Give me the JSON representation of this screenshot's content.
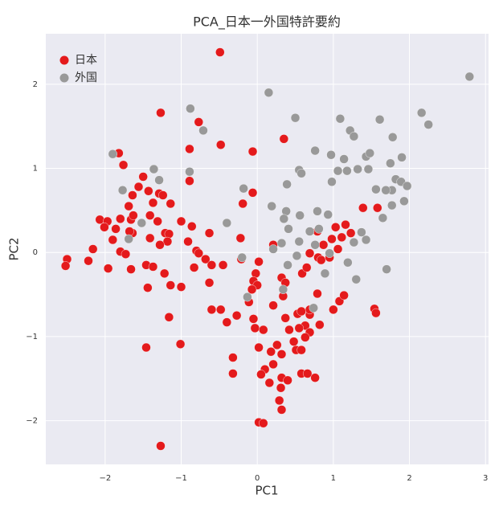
{
  "chart_data": {
    "type": "scatter",
    "title": "PCA_日本一外国特許要約",
    "x_label": "PC1",
    "y_label": "PC2",
    "xlim": [
      -2.78,
      3.04
    ],
    "ylim": [
      -2.52,
      2.6
    ],
    "xticks": [
      {
        "value": -2,
        "label": "−2"
      },
      {
        "value": -1,
        "label": "−1"
      },
      0,
      1,
      2,
      3
    ],
    "yticks": [
      {
        "value": -2,
        "label": "−2"
      },
      {
        "value": -1,
        "label": "−1"
      },
      0,
      1,
      2
    ],
    "grid": true,
    "legend": "upper left",
    "series": [
      {
        "name": "日本",
        "color": "#e41a1c",
        "x": [
          -0.49,
          -1.27,
          -0.77,
          -1.82,
          -1.76,
          -0.89,
          -0.48,
          -0.06,
          0.35,
          -0.89,
          -1.5,
          -1.56,
          -1.43,
          -1.29,
          -1.24,
          -1.64,
          -1.69,
          -1.37,
          -1.14,
          -0.19,
          -0.06,
          -2.07,
          -1.97,
          -2.01,
          -1.86,
          -1.8,
          -1.66,
          -1.63,
          -1.41,
          -1.31,
          -1.0,
          -0.86,
          -1.64,
          -1.68,
          -1.9,
          -1.41,
          -1.21,
          -1.16,
          -0.63,
          -1.18,
          -0.91,
          -1.28,
          -1.8,
          -1.73,
          -1.66,
          -1.46,
          -1.37,
          -0.8,
          -0.77,
          -0.68,
          -0.83,
          -0.6,
          -0.45,
          -0.63,
          -1.0,
          -1.14,
          -1.22,
          -1.44,
          -2.22,
          -2.5,
          -2.52,
          -2.16,
          -1.96,
          -0.6,
          -0.48,
          -0.27,
          -0.4,
          -1.16,
          -1.01,
          -1.46,
          -0.32,
          -0.32,
          -1.27,
          -0.22,
          -0.21,
          0.02,
          -0.02,
          -0.05,
          0.0,
          -0.07,
          -0.11,
          -0.05,
          0.08,
          -0.03,
          0.02,
          0.18,
          0.26,
          0.32,
          0.21,
          0.1,
          0.05,
          0.32,
          0.16,
          0.4,
          0.31,
          0.29,
          0.32,
          0.02,
          0.08,
          0.32,
          0.37,
          0.21,
          0.34,
          0.37,
          0.42,
          0.53,
          0.58,
          0.69,
          0.63,
          0.55,
          0.69,
          0.82,
          0.63,
          0.58,
          0.66,
          0.76,
          0.69,
          0.48,
          0.51,
          0.58,
          0.59,
          0.65,
          0.69,
          0.8,
          0.84,
          0.87,
          0.98,
          0.95,
          0.79,
          1.03,
          1.16,
          1.11,
          1.23,
          1.06,
          1.08,
          1.14,
          1.0,
          1.39,
          1.58,
          1.54,
          1.56,
          0.79,
          0.21
        ],
        "values": [
          2.38,
          1.66,
          1.55,
          1.18,
          1.04,
          1.23,
          1.28,
          1.2,
          1.35,
          0.85,
          0.9,
          0.78,
          0.73,
          0.7,
          0.68,
          0.68,
          0.55,
          0.59,
          0.58,
          0.58,
          0.71,
          0.39,
          0.37,
          0.3,
          0.28,
          0.4,
          0.39,
          0.44,
          0.44,
          0.37,
          0.37,
          0.31,
          0.23,
          0.25,
          0.15,
          0.17,
          0.23,
          0.22,
          0.23,
          0.13,
          0.13,
          0.09,
          0.01,
          -0.02,
          -0.2,
          -0.15,
          -0.17,
          0.02,
          -0.01,
          -0.08,
          -0.18,
          -0.15,
          -0.15,
          -0.36,
          -0.41,
          -0.39,
          -0.25,
          -0.42,
          -0.1,
          -0.08,
          -0.16,
          0.04,
          -0.19,
          -0.68,
          -0.68,
          -0.75,
          -0.83,
          -0.77,
          -1.09,
          -1.13,
          -1.25,
          -1.44,
          -2.3,
          0.17,
          -0.08,
          -0.11,
          -0.25,
          -0.34,
          -0.39,
          -0.44,
          -0.59,
          -0.79,
          -0.92,
          -0.9,
          -1.13,
          -1.18,
          -1.1,
          -1.21,
          -1.33,
          -1.39,
          -1.45,
          -1.49,
          -1.55,
          -1.52,
          -1.61,
          -1.76,
          -1.87,
          -2.02,
          -2.03,
          -0.3,
          -0.36,
          -0.63,
          -0.52,
          -0.78,
          -0.92,
          -0.73,
          -0.7,
          -0.74,
          -0.87,
          -0.9,
          -0.95,
          -0.86,
          -1.01,
          -1.44,
          -1.44,
          -1.49,
          -0.68,
          -1.06,
          -1.16,
          -1.16,
          -0.25,
          -0.18,
          -0.01,
          -0.06,
          -0.09,
          0.09,
          0.16,
          -0.06,
          0.25,
          0.3,
          0.33,
          0.18,
          0.23,
          0.04,
          -0.58,
          -0.51,
          -0.68,
          0.53,
          0.53,
          -0.67,
          -0.72,
          -0.49,
          0.09
        ]
      },
      {
        "name": "外国",
        "color": "#999999",
        "x": [
          2.79,
          2.16,
          2.25,
          0.15,
          0.5,
          1.09,
          1.22,
          1.61,
          1.27,
          1.78,
          -0.88,
          -0.71,
          -1.9,
          0.76,
          0.97,
          1.14,
          1.43,
          1.48,
          1.9,
          1.75,
          0.55,
          1.06,
          1.18,
          1.32,
          1.46,
          -1.36,
          -0.89,
          -1.29,
          -1.77,
          -0.18,
          0.39,
          0.58,
          0.98,
          1.82,
          1.77,
          1.89,
          1.97,
          1.56,
          1.69,
          0.19,
          1.77,
          1.93,
          1.65,
          0.38,
          0.35,
          0.56,
          0.79,
          0.93,
          -1.52,
          -0.4,
          0.41,
          0.69,
          0.81,
          1.37,
          1.43,
          1.27,
          -1.69,
          0.32,
          0.55,
          0.76,
          0.52,
          0.21,
          -0.2,
          0.4,
          0.89,
          1.19,
          1.3,
          1.7,
          -0.13,
          0.74,
          0.34,
          0.95
        ],
        "values": [
          2.09,
          1.66,
          1.52,
          1.9,
          1.6,
          1.59,
          1.45,
          1.58,
          1.38,
          1.37,
          1.71,
          1.45,
          1.17,
          1.21,
          1.16,
          1.11,
          1.14,
          1.18,
          1.13,
          1.06,
          0.98,
          0.97,
          0.97,
          0.99,
          0.99,
          0.99,
          0.96,
          0.86,
          0.74,
          0.76,
          0.81,
          0.94,
          0.84,
          0.87,
          0.74,
          0.84,
          0.79,
          0.75,
          0.74,
          0.55,
          0.56,
          0.61,
          0.41,
          0.49,
          0.4,
          0.44,
          0.49,
          0.45,
          0.35,
          0.35,
          0.28,
          0.25,
          0.28,
          0.24,
          0.15,
          0.12,
          0.16,
          0.11,
          0.13,
          0.09,
          -0.04,
          0.04,
          -0.06,
          -0.15,
          -0.25,
          -0.12,
          -0.32,
          -0.2,
          -0.53,
          -0.66,
          -0.44,
          -0.01
        ]
      }
    ]
  }
}
